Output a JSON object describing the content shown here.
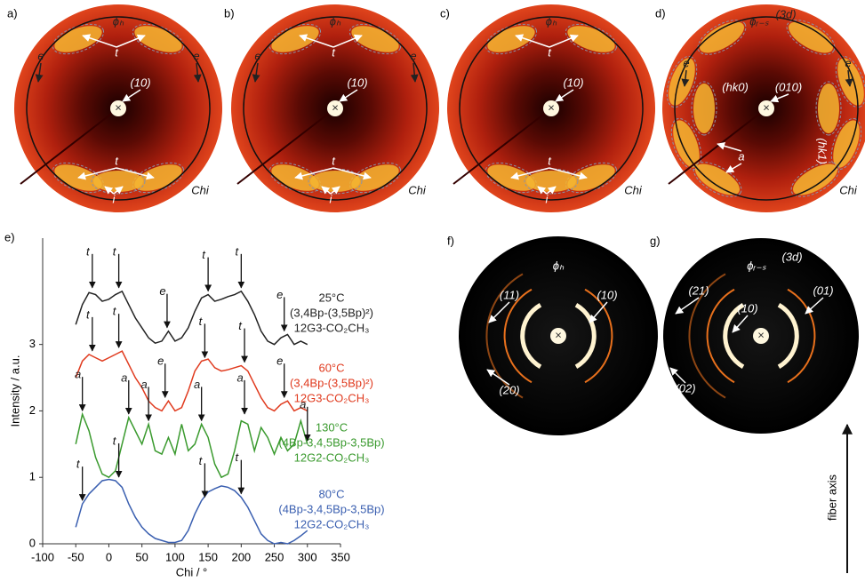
{
  "panels": [
    {
      "label": "a)",
      "annotations": [
        "ϕₕ",
        "t",
        "e",
        "e",
        "(10)",
        "t",
        "i",
        "Chi"
      ]
    },
    {
      "label": "b)",
      "annotations": [
        "ϕₕ",
        "t",
        "e",
        "e",
        "(10)",
        "t",
        "i",
        "Chi"
      ]
    },
    {
      "label": "c)",
      "annotations": [
        "ϕₕ",
        "t",
        "(10)",
        "t",
        "i",
        "Chi"
      ]
    },
    {
      "label": "d)",
      "annotations": [
        "ϕᵣ₋ₛ",
        "(3d)",
        "e",
        "e",
        "(hk0)",
        "(010)",
        "a",
        "(hk1)",
        "Chi"
      ]
    },
    {
      "label": "f)",
      "annotations": [
        "ϕₕ",
        "(11)",
        "(10)",
        "(20)"
      ]
    },
    {
      "label": "g)",
      "annotations": [
        "ϕᵣ₋ₛ",
        "(3d)",
        "(21)",
        "(01)",
        "(10)",
        "(02)"
      ]
    }
  ],
  "fiber_axis": "fiber axis",
  "chart_data": {
    "type": "line",
    "panel_label": "e)",
    "x_label": "Chi / °",
    "y_label": "Intensity / a.u.",
    "x": [
      -50,
      -40,
      -30,
      -20,
      -10,
      0,
      10,
      20,
      30,
      40,
      50,
      60,
      70,
      80,
      90,
      100,
      110,
      120,
      130,
      140,
      150,
      160,
      170,
      180,
      190,
      200,
      210,
      220,
      230,
      240,
      250,
      260,
      270,
      280,
      290,
      300
    ],
    "xlim": [
      -100,
      350
    ],
    "xticks": [
      -100,
      -50,
      0,
      50,
      100,
      150,
      200,
      250,
      300,
      350
    ],
    "ylim": [
      0,
      4.6
    ],
    "yticks": [
      0,
      1,
      2,
      3
    ],
    "series": [
      {
        "name": "25°C",
        "compound": [
          "(3,4Bp-(3,5Bp)²)",
          "12G3-CO₂CH₃"
        ],
        "color": "#222222",
        "values": [
          3.3,
          3.6,
          3.78,
          3.75,
          3.65,
          3.68,
          3.75,
          3.8,
          3.6,
          3.4,
          3.25,
          3.1,
          3.02,
          3.05,
          3.2,
          3.05,
          3.1,
          3.25,
          3.5,
          3.7,
          3.75,
          3.65,
          3.68,
          3.72,
          3.75,
          3.8,
          3.65,
          3.45,
          3.2,
          3.05,
          3.0,
          3.1,
          3.15,
          3.0,
          3.05,
          3.0
        ]
      },
      {
        "name": "60°C",
        "compound": [
          "(3,4Bp-(3,5Bp)²)",
          "12G3-CO₂CH₃"
        ],
        "color": "#e03a1e",
        "values": [
          2.5,
          2.75,
          2.85,
          2.8,
          2.75,
          2.8,
          2.85,
          2.9,
          2.7,
          2.5,
          2.35,
          2.15,
          2.05,
          2.0,
          2.15,
          2.0,
          2.05,
          2.3,
          2.6,
          2.75,
          2.78,
          2.65,
          2.6,
          2.62,
          2.65,
          2.68,
          2.6,
          2.4,
          2.2,
          2.05,
          2.0,
          2.1,
          2.15,
          2.0,
          2.05,
          2.0
        ]
      },
      {
        "name": "130°C",
        "compound": [
          "(4Bp-3,4,5Bp-3,5Bp)",
          "12G2-CO₂CH₃"
        ],
        "color": "#3a9a2e",
        "values": [
          1.5,
          1.95,
          1.7,
          1.3,
          1.05,
          1.0,
          1.1,
          1.5,
          1.9,
          1.7,
          1.5,
          1.8,
          1.4,
          1.35,
          1.6,
          1.35,
          1.8,
          1.4,
          1.5,
          1.8,
          1.6,
          1.2,
          1.0,
          1.05,
          1.4,
          1.85,
          1.8,
          1.4,
          1.75,
          1.6,
          1.35,
          1.6,
          1.4,
          1.5,
          1.85,
          1.5
        ]
      },
      {
        "name": "80°C",
        "compound": [
          "(4Bp-3,4,5Bp-3,5Bp)",
          "12G2-CO₂CH₃"
        ],
        "color": "#3a5fb0",
        "values": [
          0.25,
          0.6,
          0.75,
          0.85,
          0.95,
          0.97,
          0.95,
          0.85,
          0.6,
          0.4,
          0.25,
          0.15,
          0.08,
          0.05,
          0.02,
          0.02,
          0.05,
          0.2,
          0.45,
          0.65,
          0.78,
          0.83,
          0.87,
          0.85,
          0.8,
          0.7,
          0.55,
          0.35,
          0.15,
          0.05,
          0.0,
          0.02,
          0.0,
          0.05,
          0.12,
          0.2
        ]
      }
    ],
    "annotations": [
      "t",
      "t",
      "t",
      "t",
      "e",
      "e",
      "t",
      "t",
      "t",
      "t",
      "e",
      "e",
      "a",
      "a",
      "a",
      "a",
      "a",
      "a",
      "t",
      "t",
      "t",
      "t"
    ]
  }
}
